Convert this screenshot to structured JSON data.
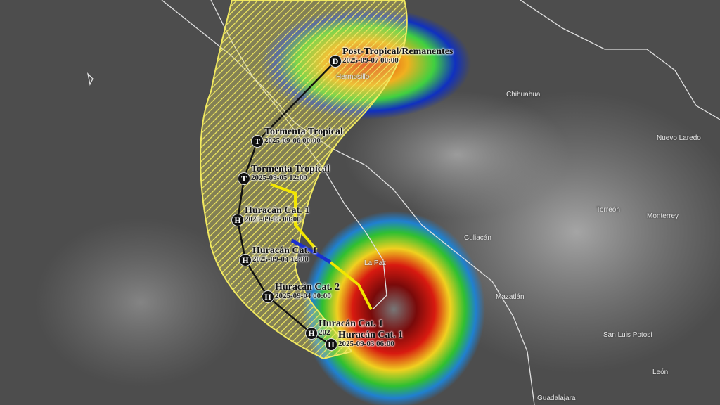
{
  "track_points": [
    {
      "symbol": "D",
      "status": "Post-Tropical/Remanentes",
      "datetime": "2025-09-07 00:00"
    },
    {
      "symbol": "T",
      "status": "Tormenta Tropical",
      "datetime": "2025-09-06 00:00"
    },
    {
      "symbol": "T",
      "status": "Tormenta Tropical",
      "datetime": "2025-09-05 12:00"
    },
    {
      "symbol": "H",
      "status": "Huracán Cat. 1",
      "datetime": "2025-09-05 00:00"
    },
    {
      "symbol": "H",
      "status": "Huracán Cat. 1",
      "datetime": "2025-09-04 12:00"
    },
    {
      "symbol": "H",
      "status": "Huracán Cat. 2",
      "datetime": "2025-09-04 00:00"
    },
    {
      "symbol": "H",
      "status": "Huracán Cat. 1",
      "datetime": "202"
    },
    {
      "symbol": "H",
      "status": "Huracán Cat. 1",
      "datetime": "2025-09-03 06:00"
    }
  ],
  "cities": [
    "Hermosillo",
    "Chihuahua",
    "Nuevo Laredo",
    "Torreón",
    "Monterrey",
    "Culiacán",
    "La Paz",
    "Mazatlán",
    "San Luis Potosí",
    "León",
    "Guadalajara"
  ],
  "colors": {
    "cone": "#e8e060",
    "forecast_track": "#111111",
    "warning_yellow": "#f2e600",
    "warning_blue": "#1a2fd0"
  }
}
